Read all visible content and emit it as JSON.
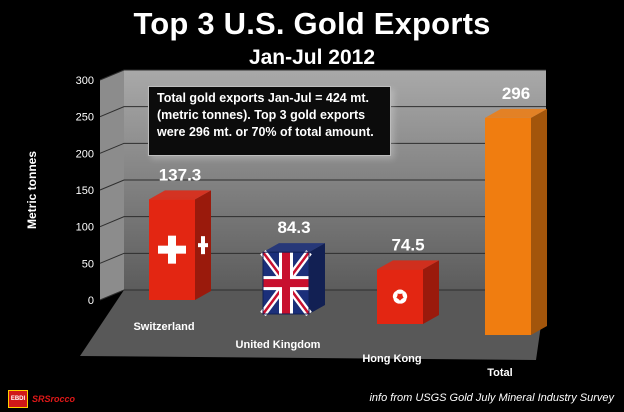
{
  "chart_data": {
    "type": "bar",
    "title": "Top 3 U.S. Gold Exports",
    "subtitle": "Jan-Jul 2012",
    "ylabel": "Metric tonnes",
    "xlabel": "",
    "ylim": [
      0,
      300
    ],
    "yticks": [
      "0",
      "50",
      "100",
      "150",
      "200",
      "250",
      "300"
    ],
    "categories": [
      "Switzerland",
      "United Kingdom",
      "Hong Kong",
      "Total"
    ],
    "values": [
      137.3,
      84.3,
      74.5,
      296
    ],
    "data_labels": [
      "137.3",
      "84.3",
      "74.5",
      "296"
    ],
    "bar_styles": [
      "swiss-flag",
      "union-jack",
      "hong-kong-flag",
      "orange"
    ],
    "annotation": "Total gold exports Jan-Jul = 424 mt.\n(metric tonnes).  Top 3 gold exports\nwere 296 mt. or 70% of total amount.",
    "legend": "none",
    "grid": true
  },
  "colors": {
    "background": "#000000",
    "red_bar": "#e32612",
    "total_bar": "#f07d10",
    "wall": "#7f7f7f",
    "floor": "#585858"
  },
  "logo": {
    "box_text": "EBDI",
    "text": "SRSrocco"
  },
  "source": "info from  USGS Gold July Mineral Industry Survey"
}
